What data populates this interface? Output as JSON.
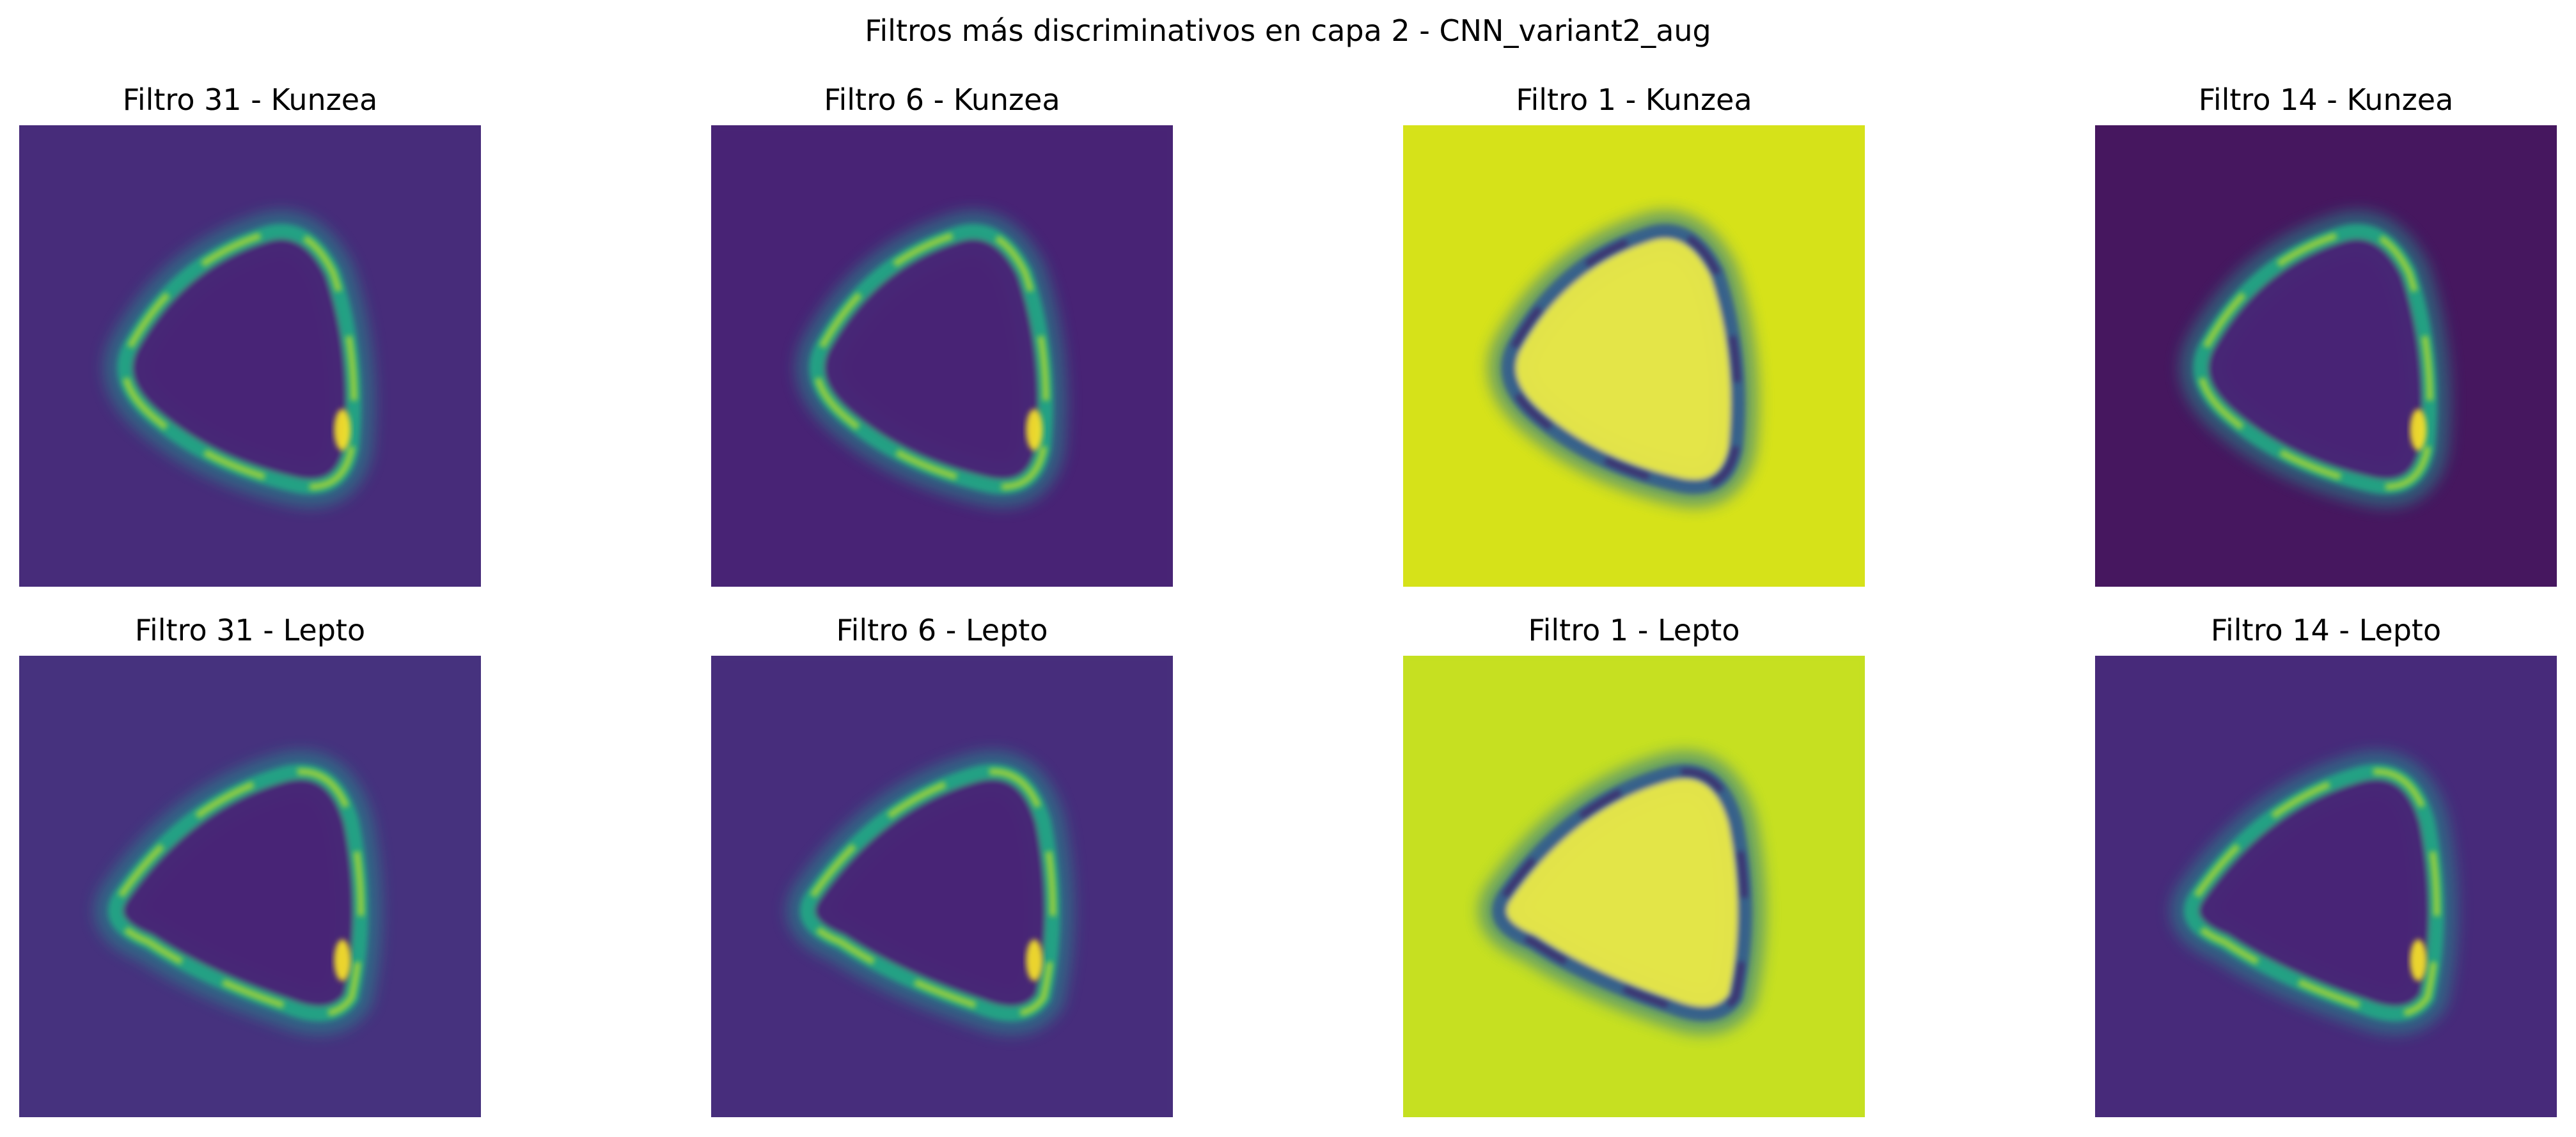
{
  "figure": {
    "title": "Filtros más discriminativos en capa 2 - CNN_variant2_aug"
  },
  "colormap": [
    "#440154",
    "#482475",
    "#414487",
    "#355f8d",
    "#2a788e",
    "#21918c",
    "#22a884",
    "#44bf70",
    "#7ad151",
    "#bddf26",
    "#fde725"
  ],
  "panels": [
    {
      "title": "Filtro 31 - Kunzea",
      "filter": 31,
      "class": "Kunzea",
      "background": "#472c7a",
      "inverted": false,
      "shape": "triangle-up-left"
    },
    {
      "title": "Filtro 6 - Kunzea",
      "filter": 6,
      "class": "Kunzea",
      "background": "#482475",
      "inverted": false,
      "shape": "triangle-up-left"
    },
    {
      "title": "Filtro 1 - Kunzea",
      "filter": 1,
      "class": "Kunzea",
      "background": "#d6e21a",
      "inverted": true,
      "shape": "triangle-up-left"
    },
    {
      "title": "Filtro 14 - Kunzea",
      "filter": 14,
      "class": "Kunzea",
      "background": "#46175f",
      "inverted": false,
      "shape": "triangle-up-left"
    },
    {
      "title": "Filtro 31 - Lepto",
      "filter": 31,
      "class": "Lepto",
      "background": "#46327e",
      "inverted": false,
      "shape": "triangle-right"
    },
    {
      "title": "Filtro 6 - Lepto",
      "filter": 6,
      "class": "Lepto",
      "background": "#472e7c",
      "inverted": false,
      "shape": "triangle-right"
    },
    {
      "title": "Filtro 1 - Lepto",
      "filter": 1,
      "class": "Lepto",
      "background": "#c5e021",
      "inverted": true,
      "shape": "triangle-right"
    },
    {
      "title": "Filtro 14 - Lepto",
      "filter": 14,
      "class": "Lepto",
      "background": "#472a7a",
      "inverted": false,
      "shape": "triangle-right"
    }
  ]
}
